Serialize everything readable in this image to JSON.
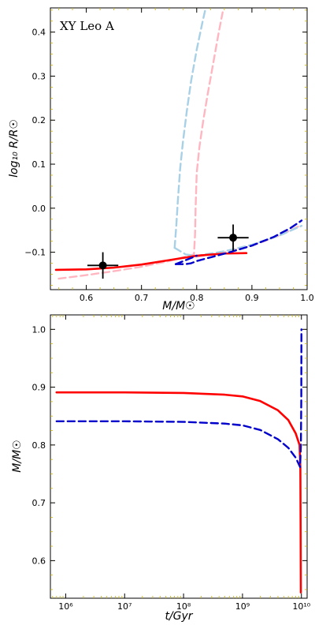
{
  "chart_data": [
    {
      "type": "line",
      "title": "XY Leo A",
      "xlabel": "M/M☉",
      "ylabel": "log₁₀ R/R☉",
      "xlim": [
        0.535,
        1.0
      ],
      "ylim": [
        -0.185,
        0.455
      ],
      "xticks": [
        "0.6",
        "0.7",
        "0.8",
        "0.9",
        "1.0"
      ],
      "xtick_values": [
        0.6,
        0.7,
        0.8,
        0.9,
        1.0
      ],
      "yticks": [
        "0.4",
        "0.3",
        "0.2",
        "0.1",
        "0.0",
        "−0.1"
      ],
      "ytick_values": [
        0.4,
        0.3,
        0.2,
        0.1,
        0.0,
        -0.1
      ],
      "series": [
        {
          "color": "#ffb6c1",
          "style": "dashed",
          "points": [
            [
              0.55,
              -0.16
            ],
            [
              0.6,
              -0.152
            ],
            [
              0.65,
              -0.143
            ],
            [
              0.7,
              -0.133
            ],
            [
              0.75,
              -0.12
            ],
            [
              0.78,
              -0.11
            ],
            [
              0.795,
              -0.105
            ],
            [
              0.797,
              -0.06
            ],
            [
              0.798,
              0.0
            ],
            [
              0.8,
              0.08
            ],
            [
              0.805,
              0.14
            ],
            [
              0.812,
              0.2
            ],
            [
              0.82,
              0.26
            ],
            [
              0.83,
              0.33
            ],
            [
              0.84,
              0.4
            ],
            [
              0.847,
              0.445
            ]
          ]
        },
        {
          "color": "#ffb6c1",
          "style": "dashed",
          "points": [
            [
              0.8,
              -0.11
            ],
            [
              0.85,
              -0.1
            ],
            [
              0.9,
              -0.085
            ],
            [
              0.95,
              -0.062
            ],
            [
              0.99,
              -0.038
            ]
          ]
        },
        {
          "color": "#a8d0e6",
          "style": "dashed",
          "points": [
            [
              0.76,
              -0.09
            ],
            [
              0.763,
              -0.04
            ],
            [
              0.766,
              0.02
            ],
            [
              0.77,
              0.09
            ],
            [
              0.775,
              0.15
            ],
            [
              0.782,
              0.22
            ],
            [
              0.79,
              0.29
            ],
            [
              0.8,
              0.36
            ],
            [
              0.81,
              0.42
            ],
            [
              0.815,
              0.448
            ]
          ]
        },
        {
          "color": "#a8d0e6",
          "style": "dashed",
          "points": [
            [
              0.76,
              -0.09
            ],
            [
              0.78,
              -0.105
            ],
            [
              0.8,
              -0.108
            ],
            [
              0.85,
              -0.098
            ],
            [
              0.9,
              -0.083
            ],
            [
              0.95,
              -0.062
            ],
            [
              0.99,
              -0.04
            ]
          ]
        },
        {
          "color": "#ff0000",
          "style": "solid",
          "points": [
            [
              0.545,
              -0.14
            ],
            [
              0.6,
              -0.139
            ],
            [
              0.65,
              -0.135
            ],
            [
              0.7,
              -0.128
            ],
            [
              0.75,
              -0.118
            ],
            [
              0.8,
              -0.108
            ],
            [
              0.85,
              -0.103
            ],
            [
              0.89,
              -0.102
            ]
          ]
        },
        {
          "color": "#0000cc",
          "style": "dashed",
          "points": [
            [
              0.762,
              -0.127
            ],
            [
              0.78,
              -0.127
            ],
            [
              0.79,
              -0.125
            ],
            [
              0.8,
              -0.12
            ],
            [
              0.83,
              -0.11
            ],
            [
              0.86,
              -0.1
            ],
            [
              0.9,
              -0.085
            ],
            [
              0.94,
              -0.065
            ],
            [
              0.97,
              -0.045
            ],
            [
              0.99,
              -0.028
            ]
          ]
        },
        {
          "color": "#0000cc",
          "style": "dashed",
          "points": [
            [
              0.762,
              -0.127
            ],
            [
              0.78,
              -0.118
            ],
            [
              0.8,
              -0.108
            ]
          ]
        }
      ],
      "error_points": [
        {
          "x": 0.63,
          "y": -0.13,
          "xerr": 0.028,
          "yerr": 0.03
        },
        {
          "x": 0.866,
          "y": -0.067,
          "xerr": 0.028,
          "yerr": 0.03
        }
      ]
    },
    {
      "type": "line",
      "title": "",
      "xlabel": "t/Gyr",
      "ylabel": "M/M☉",
      "xscale": "log",
      "xlim": [
        550000.0,
        12500000000.0
      ],
      "ylim": [
        0.535,
        1.025
      ],
      "xticks": [
        "10⁶",
        "10⁷",
        "10⁸",
        "10⁹",
        "10¹⁰"
      ],
      "xtick_values": [
        1000000.0,
        10000000.0,
        100000000.0,
        1000000000.0,
        10000000000.0
      ],
      "yticks": [
        "1.0",
        "0.9",
        "0.8",
        "0.7",
        "0.6"
      ],
      "ytick_values": [
        1.0,
        0.9,
        0.8,
        0.7,
        0.6
      ],
      "series": [
        {
          "color": "#ff0000",
          "style": "solid",
          "points": [
            [
              700000.0,
              0.891
            ],
            [
              1000000.0,
              0.891
            ],
            [
              10000000.0,
              0.891
            ],
            [
              100000000.0,
              0.89
            ],
            [
              500000000.0,
              0.887
            ],
            [
              1000000000.0,
              0.884
            ],
            [
              2000000000.0,
              0.876
            ],
            [
              4000000000.0,
              0.86
            ],
            [
              6000000000.0,
              0.843
            ],
            [
              8000000000.0,
              0.82
            ],
            [
              9300000000.0,
              0.8
            ],
            [
              9600000000.0,
              0.76
            ],
            [
              9700000000.0,
              0.65
            ],
            [
              9780000000.0,
              0.545
            ]
          ]
        },
        {
          "color": "#0000cc",
          "style": "dashed",
          "points": [
            [
              700000.0,
              0.841
            ],
            [
              1000000.0,
              0.841
            ],
            [
              10000000.0,
              0.841
            ],
            [
              100000000.0,
              0.84
            ],
            [
              500000000.0,
              0.837
            ],
            [
              1000000000.0,
              0.834
            ],
            [
              2000000000.0,
              0.826
            ],
            [
              4000000000.0,
              0.81
            ],
            [
              6000000000.0,
              0.795
            ],
            [
              8000000000.0,
              0.778
            ],
            [
              9500000000.0,
              0.762
            ],
            [
              9800000000.0,
              0.8
            ],
            [
              9950000000.0,
              0.88
            ],
            [
              10000000000.0,
              1.0
            ]
          ]
        }
      ]
    }
  ]
}
